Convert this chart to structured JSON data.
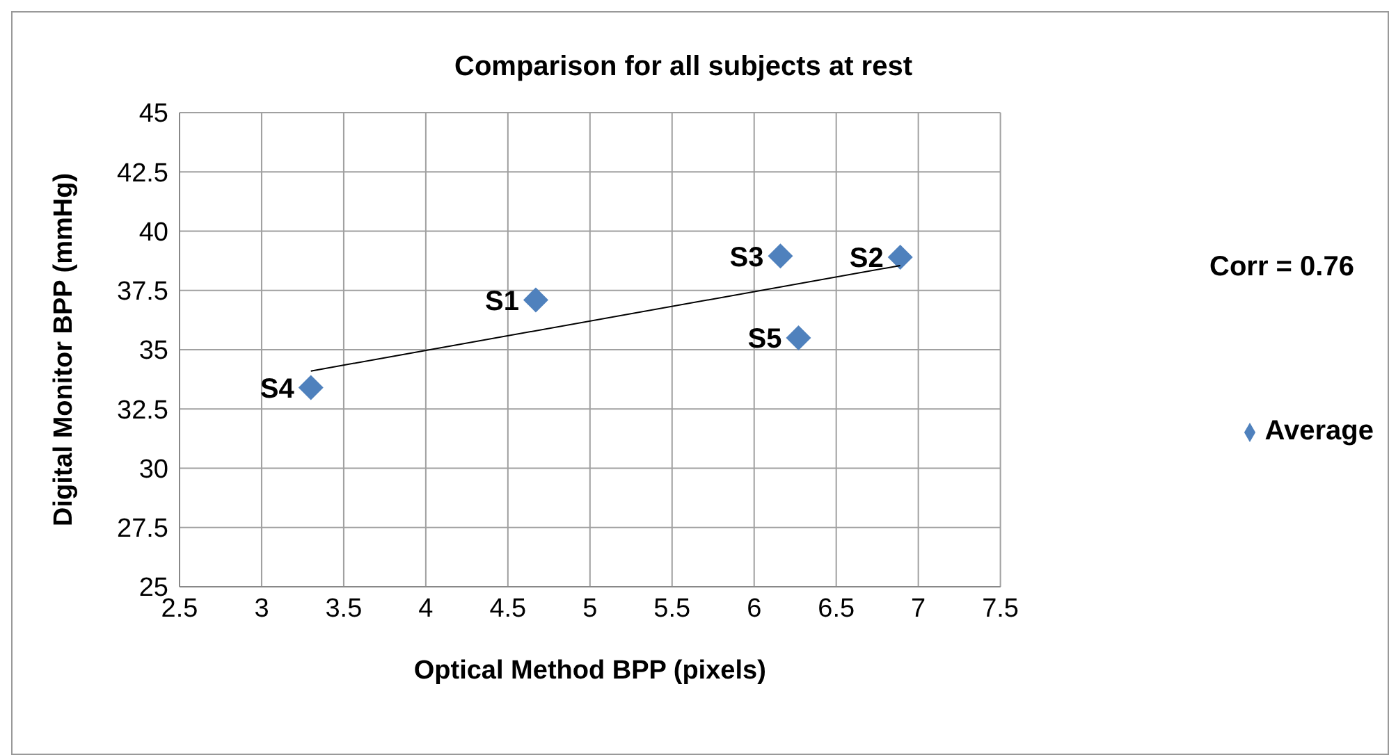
{
  "chart_data": {
    "type": "scatter",
    "title": "Comparison for all subjects at rest",
    "xlabel": "Optical Method BPP (pixels)",
    "ylabel": "Digital Monitor BPP (mmHg)",
    "series": [
      {
        "name": "Average",
        "color": "#4f81bd",
        "marker": "diamond",
        "x": [
          4.67,
          6.89,
          6.16,
          3.3,
          6.27
        ],
        "values": [
          37.1,
          38.9,
          38.95,
          33.4,
          35.5
        ]
      },
      {
        "type": "line",
        "color": "#000000",
        "marker": "none",
        "x": [
          3.3,
          6.89
        ],
        "values": [
          34.1,
          38.55
        ]
      }
    ],
    "xlim": [
      2.5,
      7.5
    ],
    "xticks": [
      2.5,
      3,
      3.5,
      4,
      4.5,
      5,
      5.5,
      6,
      6.5,
      7,
      7.5
    ],
    "ylim": [
      25,
      45
    ],
    "yticks": [
      25,
      27.5,
      30,
      32.5,
      35,
      37.5,
      40,
      42.5,
      45
    ],
    "grid": true,
    "legend": "right",
    "annotations": [
      {
        "text": "S1",
        "x": 4.67,
        "y": 37.1
      },
      {
        "text": "S2",
        "x": 6.89,
        "y": 38.9
      },
      {
        "text": "S3",
        "x": 6.16,
        "y": 38.95
      },
      {
        "text": "S4",
        "x": 3.3,
        "y": 33.4
      },
      {
        "text": "S5",
        "x": 6.27,
        "y": 35.5
      },
      "Corr = 0.76"
    ]
  }
}
